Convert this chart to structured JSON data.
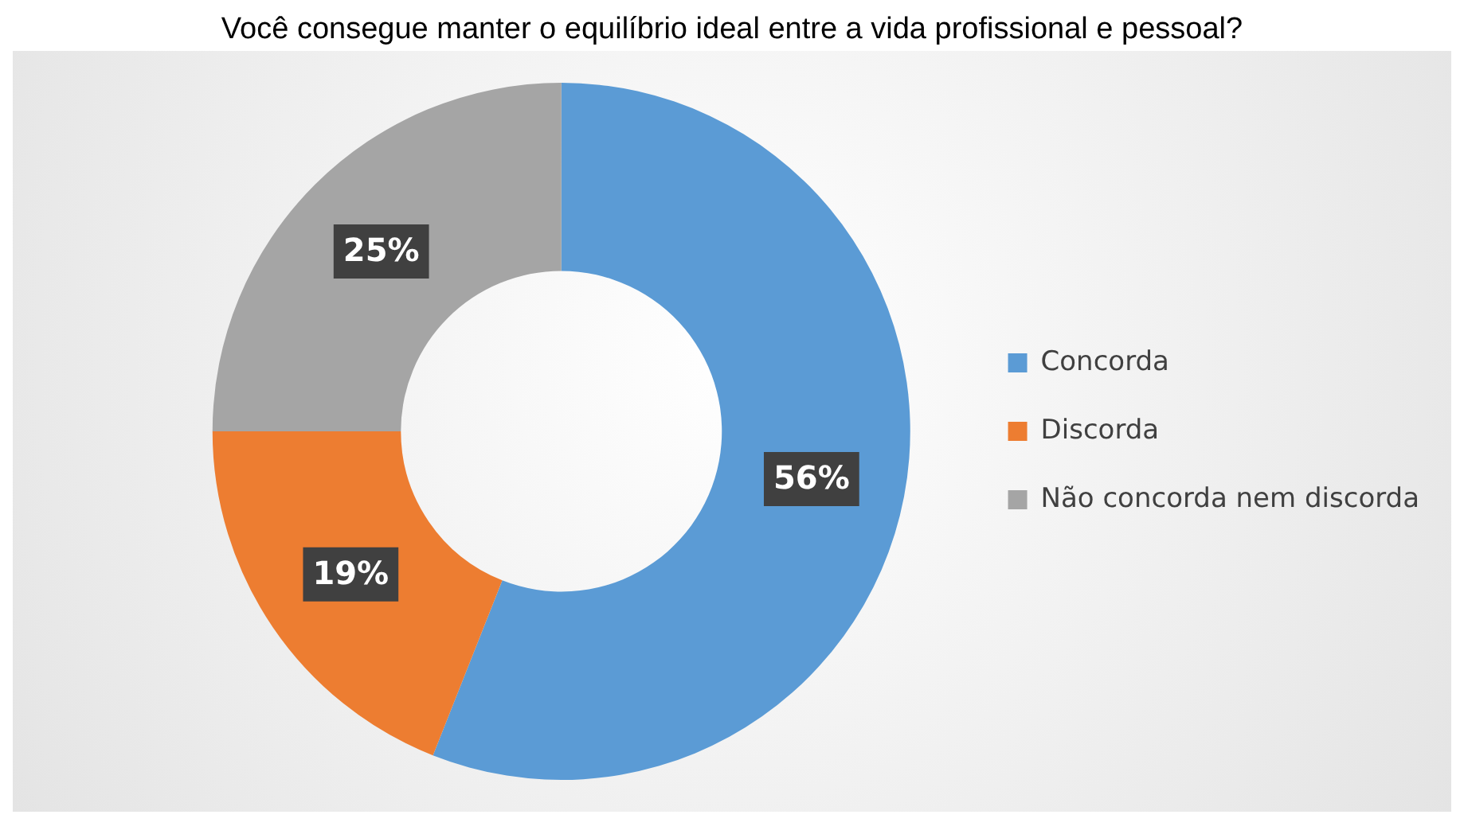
{
  "chart_data": {
    "type": "donut",
    "title": "Você consegue manter o equilíbrio ideal entre a vida profissional e pessoal?",
    "categories": [
      "Concorda",
      "Discorda",
      "Não concorda nem discorda"
    ],
    "values": [
      56,
      19,
      25
    ],
    "colors": [
      "#5b9bd5",
      "#ed7d31",
      "#a5a5a5"
    ],
    "value_labels": [
      "56%",
      "19%",
      "25%"
    ],
    "legend": "right"
  }
}
